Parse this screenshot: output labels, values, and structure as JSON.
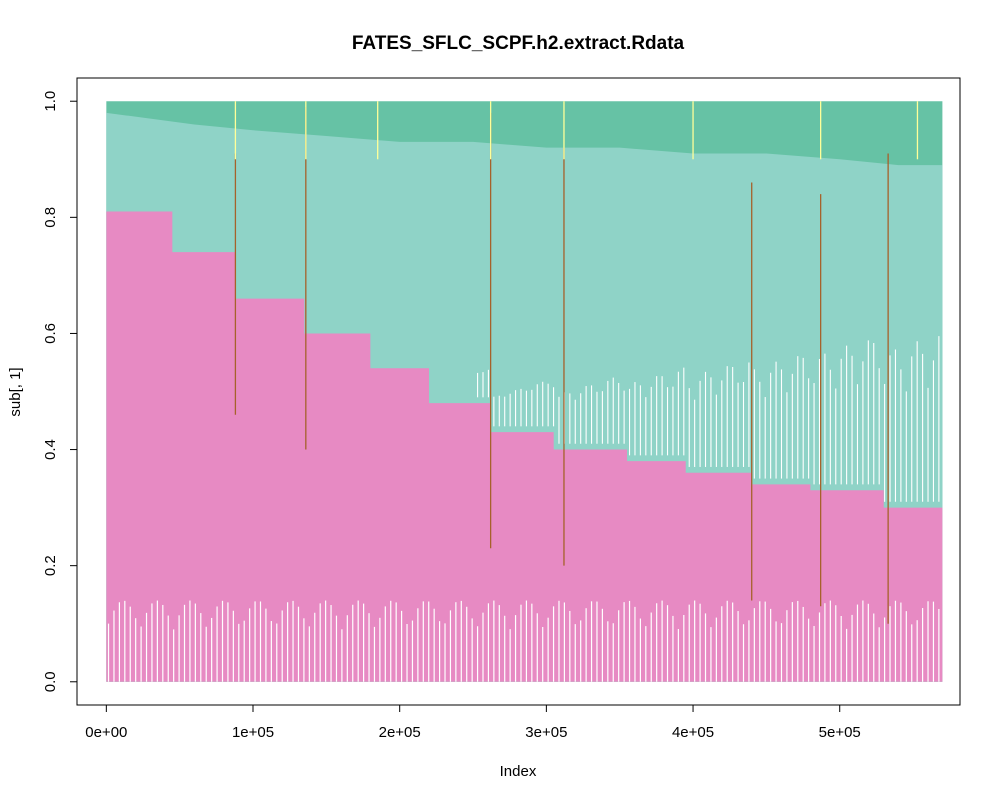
{
  "chart_data": {
    "type": "area",
    "title": "FATES_SFLC_SCPF.h2.extract.Rdata",
    "xlabel": "Index",
    "ylabel": "sub[, 1]",
    "xlim": [
      -20000,
      582000
    ],
    "ylim": [
      -0.04,
      1.04
    ],
    "x_ticks": [
      0,
      100000,
      200000,
      300000,
      400000,
      500000
    ],
    "x_tick_labels": [
      "0e+00",
      "1e+05",
      "2e+05",
      "3e+05",
      "4e+05",
      "5e+05"
    ],
    "y_ticks": [
      0.0,
      0.2,
      0.4,
      0.6,
      0.8,
      1.0
    ],
    "y_tick_labels": [
      "0.0",
      "0.2",
      "0.4",
      "0.6",
      "0.8",
      "1.0"
    ],
    "x_max": 570000,
    "colors": {
      "pink": "#e78ac3",
      "teal": "#8fd3c7",
      "green": "#66c2a5",
      "brown": "#a6612a",
      "yellow": "#ffff99"
    },
    "series": [
      {
        "color": "#e78ac3",
        "x": [
          0,
          45000,
          45000,
          88000,
          88000,
          135000,
          135000,
          180000,
          180000,
          220000,
          220000,
          262000,
          262000,
          305000,
          305000,
          355000,
          355000,
          395000,
          395000,
          440000,
          440000,
          480000,
          480000,
          530000,
          530000,
          570000
        ],
        "y": [
          0.81,
          0.81,
          0.74,
          0.74,
          0.66,
          0.66,
          0.6,
          0.6,
          0.54,
          0.54,
          0.48,
          0.48,
          0.43,
          0.43,
          0.4,
          0.4,
          0.38,
          0.38,
          0.36,
          0.36,
          0.34,
          0.34,
          0.33,
          0.33,
          0.3,
          0.3
        ]
      },
      {
        "color": "#8fd3c7",
        "x": [
          0,
          30000,
          60000,
          100000,
          150000,
          200000,
          250000,
          300000,
          350000,
          400000,
          450000,
          500000,
          540000,
          570000
        ],
        "y": [
          0.98,
          0.97,
          0.96,
          0.95,
          0.94,
          0.93,
          0.93,
          0.92,
          0.92,
          0.91,
          0.91,
          0.9,
          0.89,
          0.89
        ]
      },
      {
        "color": "#66c2a5",
        "x": [
          0,
          570000
        ],
        "y": [
          1.0,
          1.0
        ]
      }
    ],
    "vertical_spikes": [
      {
        "color": "#a6612a",
        "x": [
          88000,
          136000,
          262000,
          312000,
          440000,
          487000,
          533000
        ],
        "y_top": [
          0.91,
          0.99,
          0.98,
          0.92,
          0.86,
          0.84,
          0.91
        ]
      },
      {
        "color": "#ffff99",
        "x": [
          88000,
          136000,
          185000,
          262000,
          312000,
          400000,
          487000,
          553000
        ],
        "y_top": [
          1.0,
          1.0,
          1.0,
          1.0,
          1.0,
          1.0,
          1.0,
          1.0
        ]
      }
    ],
    "grid": false,
    "legend": "none"
  }
}
